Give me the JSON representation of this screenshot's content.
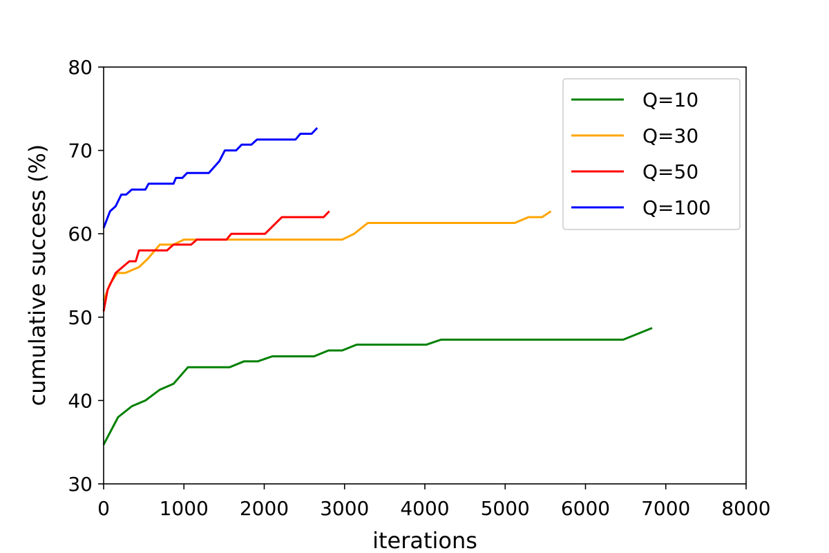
{
  "chart_data": {
    "type": "line",
    "title": "",
    "xlabel": "iterations",
    "ylabel": "cumulative success (%)",
    "xlim": [
      0,
      8000
    ],
    "ylim": [
      30,
      80
    ],
    "xticks": [
      0,
      1000,
      2000,
      3000,
      4000,
      5000,
      6000,
      7000,
      8000
    ],
    "yticks": [
      30,
      40,
      50,
      60,
      70,
      80
    ],
    "grid": false,
    "legend_position": "top-right",
    "series": [
      {
        "name": "Q=10",
        "color": "#008000",
        "points": [
          [
            0,
            34.7
          ],
          [
            180,
            38.0
          ],
          [
            350,
            39.3
          ],
          [
            520,
            40.0
          ],
          [
            700,
            41.3
          ],
          [
            870,
            42.0
          ],
          [
            1050,
            44.0
          ],
          [
            1570,
            44.0
          ],
          [
            1750,
            44.7
          ],
          [
            1920,
            44.7
          ],
          [
            2100,
            45.3
          ],
          [
            2620,
            45.3
          ],
          [
            2800,
            46.0
          ],
          [
            2970,
            46.0
          ],
          [
            3150,
            46.7
          ],
          [
            4020,
            46.7
          ],
          [
            4200,
            47.3
          ],
          [
            6470,
            47.3
          ],
          [
            6830,
            48.7
          ]
        ]
      },
      {
        "name": "Q=30",
        "color": "#ffa500",
        "points": [
          [
            0,
            52.0
          ],
          [
            80,
            54.0
          ],
          [
            170,
            55.3
          ],
          [
            270,
            55.3
          ],
          [
            440,
            56.0
          ],
          [
            550,
            57.0
          ],
          [
            700,
            58.7
          ],
          [
            870,
            58.7
          ],
          [
            1000,
            59.3
          ],
          [
            2970,
            59.3
          ],
          [
            3120,
            60.0
          ],
          [
            3290,
            61.3
          ],
          [
            5120,
            61.3
          ],
          [
            5290,
            62.0
          ],
          [
            5460,
            62.0
          ],
          [
            5570,
            62.7
          ]
        ]
      },
      {
        "name": "Q=50",
        "color": "#ff0000",
        "points": [
          [
            0,
            50.7
          ],
          [
            50,
            53.3
          ],
          [
            150,
            55.3
          ],
          [
            320,
            56.7
          ],
          [
            400,
            56.7
          ],
          [
            440,
            58.0
          ],
          [
            790,
            58.0
          ],
          [
            870,
            58.7
          ],
          [
            1090,
            58.7
          ],
          [
            1160,
            59.3
          ],
          [
            1530,
            59.3
          ],
          [
            1590,
            60.0
          ],
          [
            2010,
            60.0
          ],
          [
            2220,
            62.0
          ],
          [
            2740,
            62.0
          ],
          [
            2810,
            62.7
          ]
        ]
      },
      {
        "name": "Q=100",
        "color": "#0000ff",
        "points": [
          [
            0,
            60.7
          ],
          [
            80,
            62.7
          ],
          [
            150,
            63.3
          ],
          [
            220,
            64.7
          ],
          [
            280,
            64.7
          ],
          [
            350,
            65.3
          ],
          [
            520,
            65.3
          ],
          [
            560,
            66.0
          ],
          [
            870,
            66.0
          ],
          [
            900,
            66.7
          ],
          [
            980,
            66.7
          ],
          [
            1040,
            67.3
          ],
          [
            1310,
            67.3
          ],
          [
            1440,
            68.7
          ],
          [
            1510,
            70.0
          ],
          [
            1650,
            70.0
          ],
          [
            1720,
            70.7
          ],
          [
            1840,
            70.7
          ],
          [
            1910,
            71.3
          ],
          [
            2390,
            71.3
          ],
          [
            2450,
            72.0
          ],
          [
            2590,
            72.0
          ],
          [
            2660,
            72.7
          ]
        ]
      }
    ]
  }
}
